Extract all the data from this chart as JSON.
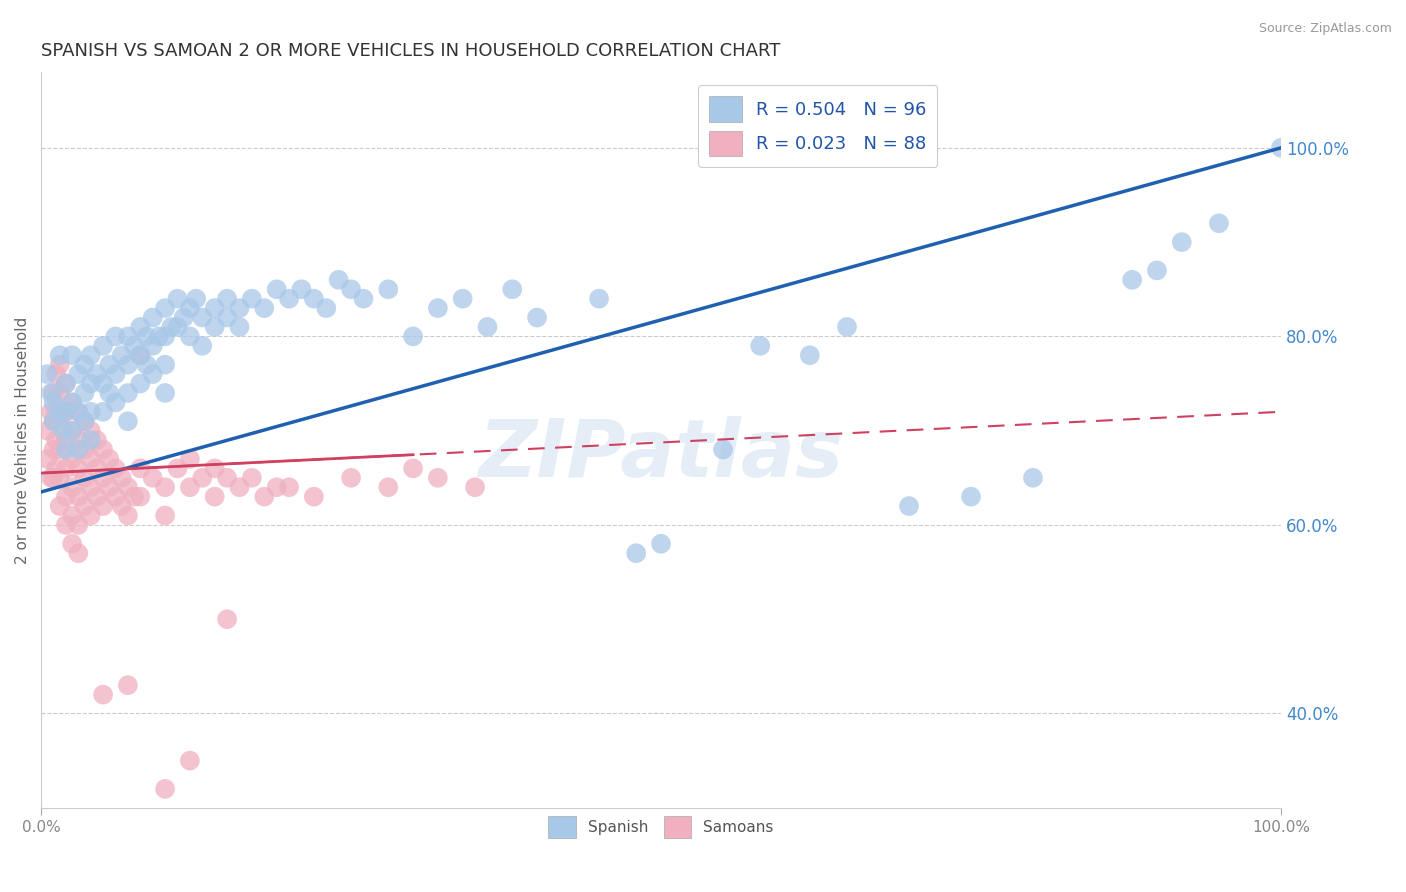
{
  "title": "SPANISH VS SAMOAN 2 OR MORE VEHICLES IN HOUSEHOLD CORRELATION CHART",
  "source_text": "Source: ZipAtlas.com",
  "ylabel": "2 or more Vehicles in Household",
  "watermark": "ZIPatlas",
  "legend_blue_r": "R = 0.504",
  "legend_blue_n": "N = 96",
  "legend_pink_r": "R = 0.023",
  "legend_pink_n": "N = 88",
  "legend_blue_label": "Spanish",
  "legend_pink_label": "Samoans",
  "xlim": [
    0.0,
    1.0
  ],
  "ylim": [
    0.3,
    1.08
  ],
  "xtick_vals": [
    0.0,
    1.0
  ],
  "xtick_labels": [
    "0.0%",
    "100.0%"
  ],
  "ytick_vals_right": [
    0.4,
    0.6,
    0.8,
    1.0
  ],
  "ytick_labels_right": [
    "40.0%",
    "60.0%",
    "80.0%",
    "100.0%"
  ],
  "blue_color": "#a8c8e8",
  "pink_color": "#f0b0c0",
  "blue_line_color": "#2060b0",
  "pink_line_color": "#d04060",
  "title_color": "#333333",
  "source_color": "#999999",
  "grid_color": "#cccccc",
  "right_tick_color": "#4488cc",
  "blue_line_start_y": 0.635,
  "blue_line_end_y": 1.0,
  "pink_line_start_y": 0.655,
  "pink_line_end_y": 0.72,
  "blue_scatter": [
    [
      0.005,
      0.76
    ],
    [
      0.008,
      0.74
    ],
    [
      0.01,
      0.73
    ],
    [
      0.01,
      0.71
    ],
    [
      0.015,
      0.78
    ],
    [
      0.015,
      0.72
    ],
    [
      0.018,
      0.7
    ],
    [
      0.02,
      0.75
    ],
    [
      0.02,
      0.72
    ],
    [
      0.02,
      0.68
    ],
    [
      0.025,
      0.78
    ],
    [
      0.025,
      0.73
    ],
    [
      0.025,
      0.7
    ],
    [
      0.03,
      0.76
    ],
    [
      0.03,
      0.72
    ],
    [
      0.03,
      0.68
    ],
    [
      0.035,
      0.77
    ],
    [
      0.035,
      0.74
    ],
    [
      0.035,
      0.71
    ],
    [
      0.04,
      0.78
    ],
    [
      0.04,
      0.75
    ],
    [
      0.04,
      0.72
    ],
    [
      0.04,
      0.69
    ],
    [
      0.045,
      0.76
    ],
    [
      0.05,
      0.79
    ],
    [
      0.05,
      0.75
    ],
    [
      0.05,
      0.72
    ],
    [
      0.055,
      0.77
    ],
    [
      0.055,
      0.74
    ],
    [
      0.06,
      0.8
    ],
    [
      0.06,
      0.76
    ],
    [
      0.06,
      0.73
    ],
    [
      0.065,
      0.78
    ],
    [
      0.07,
      0.8
    ],
    [
      0.07,
      0.77
    ],
    [
      0.07,
      0.74
    ],
    [
      0.07,
      0.71
    ],
    [
      0.075,
      0.79
    ],
    [
      0.08,
      0.81
    ],
    [
      0.08,
      0.78
    ],
    [
      0.08,
      0.75
    ],
    [
      0.085,
      0.8
    ],
    [
      0.085,
      0.77
    ],
    [
      0.09,
      0.82
    ],
    [
      0.09,
      0.79
    ],
    [
      0.09,
      0.76
    ],
    [
      0.095,
      0.8
    ],
    [
      0.1,
      0.83
    ],
    [
      0.1,
      0.8
    ],
    [
      0.1,
      0.77
    ],
    [
      0.1,
      0.74
    ],
    [
      0.105,
      0.81
    ],
    [
      0.11,
      0.84
    ],
    [
      0.11,
      0.81
    ],
    [
      0.115,
      0.82
    ],
    [
      0.12,
      0.83
    ],
    [
      0.12,
      0.8
    ],
    [
      0.125,
      0.84
    ],
    [
      0.13,
      0.82
    ],
    [
      0.13,
      0.79
    ],
    [
      0.14,
      0.83
    ],
    [
      0.14,
      0.81
    ],
    [
      0.15,
      0.84
    ],
    [
      0.15,
      0.82
    ],
    [
      0.16,
      0.83
    ],
    [
      0.16,
      0.81
    ],
    [
      0.17,
      0.84
    ],
    [
      0.18,
      0.83
    ],
    [
      0.19,
      0.85
    ],
    [
      0.2,
      0.84
    ],
    [
      0.21,
      0.85
    ],
    [
      0.22,
      0.84
    ],
    [
      0.23,
      0.83
    ],
    [
      0.24,
      0.86
    ],
    [
      0.25,
      0.85
    ],
    [
      0.26,
      0.84
    ],
    [
      0.28,
      0.85
    ],
    [
      0.3,
      0.8
    ],
    [
      0.32,
      0.83
    ],
    [
      0.34,
      0.84
    ],
    [
      0.36,
      0.81
    ],
    [
      0.38,
      0.85
    ],
    [
      0.4,
      0.82
    ],
    [
      0.45,
      0.84
    ],
    [
      0.48,
      0.57
    ],
    [
      0.5,
      0.58
    ],
    [
      0.55,
      0.68
    ],
    [
      0.58,
      0.79
    ],
    [
      0.62,
      0.78
    ],
    [
      0.65,
      0.81
    ],
    [
      0.7,
      0.62
    ],
    [
      0.75,
      0.63
    ],
    [
      0.8,
      0.65
    ],
    [
      0.88,
      0.86
    ],
    [
      0.9,
      0.87
    ],
    [
      0.92,
      0.9
    ],
    [
      0.95,
      0.92
    ],
    [
      1.0,
      1.0
    ]
  ],
  "pink_scatter": [
    [
      0.005,
      0.7
    ],
    [
      0.005,
      0.67
    ],
    [
      0.008,
      0.72
    ],
    [
      0.008,
      0.65
    ],
    [
      0.01,
      0.74
    ],
    [
      0.01,
      0.71
    ],
    [
      0.01,
      0.68
    ],
    [
      0.01,
      0.65
    ],
    [
      0.012,
      0.76
    ],
    [
      0.012,
      0.72
    ],
    [
      0.012,
      0.69
    ],
    [
      0.012,
      0.66
    ],
    [
      0.015,
      0.77
    ],
    [
      0.015,
      0.74
    ],
    [
      0.015,
      0.71
    ],
    [
      0.015,
      0.68
    ],
    [
      0.015,
      0.65
    ],
    [
      0.015,
      0.62
    ],
    [
      0.02,
      0.75
    ],
    [
      0.02,
      0.72
    ],
    [
      0.02,
      0.69
    ],
    [
      0.02,
      0.66
    ],
    [
      0.02,
      0.63
    ],
    [
      0.02,
      0.6
    ],
    [
      0.025,
      0.73
    ],
    [
      0.025,
      0.7
    ],
    [
      0.025,
      0.67
    ],
    [
      0.025,
      0.64
    ],
    [
      0.025,
      0.61
    ],
    [
      0.025,
      0.58
    ],
    [
      0.03,
      0.72
    ],
    [
      0.03,
      0.69
    ],
    [
      0.03,
      0.66
    ],
    [
      0.03,
      0.63
    ],
    [
      0.03,
      0.6
    ],
    [
      0.03,
      0.57
    ],
    [
      0.035,
      0.71
    ],
    [
      0.035,
      0.68
    ],
    [
      0.035,
      0.65
    ],
    [
      0.035,
      0.62
    ],
    [
      0.04,
      0.7
    ],
    [
      0.04,
      0.67
    ],
    [
      0.04,
      0.64
    ],
    [
      0.04,
      0.61
    ],
    [
      0.045,
      0.69
    ],
    [
      0.045,
      0.66
    ],
    [
      0.045,
      0.63
    ],
    [
      0.05,
      0.68
    ],
    [
      0.05,
      0.65
    ],
    [
      0.05,
      0.62
    ],
    [
      0.055,
      0.67
    ],
    [
      0.055,
      0.64
    ],
    [
      0.06,
      0.66
    ],
    [
      0.06,
      0.63
    ],
    [
      0.065,
      0.65
    ],
    [
      0.065,
      0.62
    ],
    [
      0.07,
      0.64
    ],
    [
      0.07,
      0.61
    ],
    [
      0.075,
      0.63
    ],
    [
      0.08,
      0.78
    ],
    [
      0.08,
      0.66
    ],
    [
      0.08,
      0.63
    ],
    [
      0.09,
      0.65
    ],
    [
      0.1,
      0.64
    ],
    [
      0.1,
      0.61
    ],
    [
      0.11,
      0.66
    ],
    [
      0.12,
      0.67
    ],
    [
      0.12,
      0.64
    ],
    [
      0.13,
      0.65
    ],
    [
      0.14,
      0.66
    ],
    [
      0.14,
      0.63
    ],
    [
      0.15,
      0.65
    ],
    [
      0.16,
      0.64
    ],
    [
      0.17,
      0.65
    ],
    [
      0.18,
      0.63
    ],
    [
      0.19,
      0.64
    ],
    [
      0.2,
      0.64
    ],
    [
      0.22,
      0.63
    ],
    [
      0.25,
      0.65
    ],
    [
      0.28,
      0.64
    ],
    [
      0.3,
      0.66
    ],
    [
      0.32,
      0.65
    ],
    [
      0.35,
      0.64
    ],
    [
      0.05,
      0.42
    ],
    [
      0.07,
      0.43
    ],
    [
      0.1,
      0.32
    ],
    [
      0.12,
      0.35
    ],
    [
      0.15,
      0.5
    ]
  ]
}
